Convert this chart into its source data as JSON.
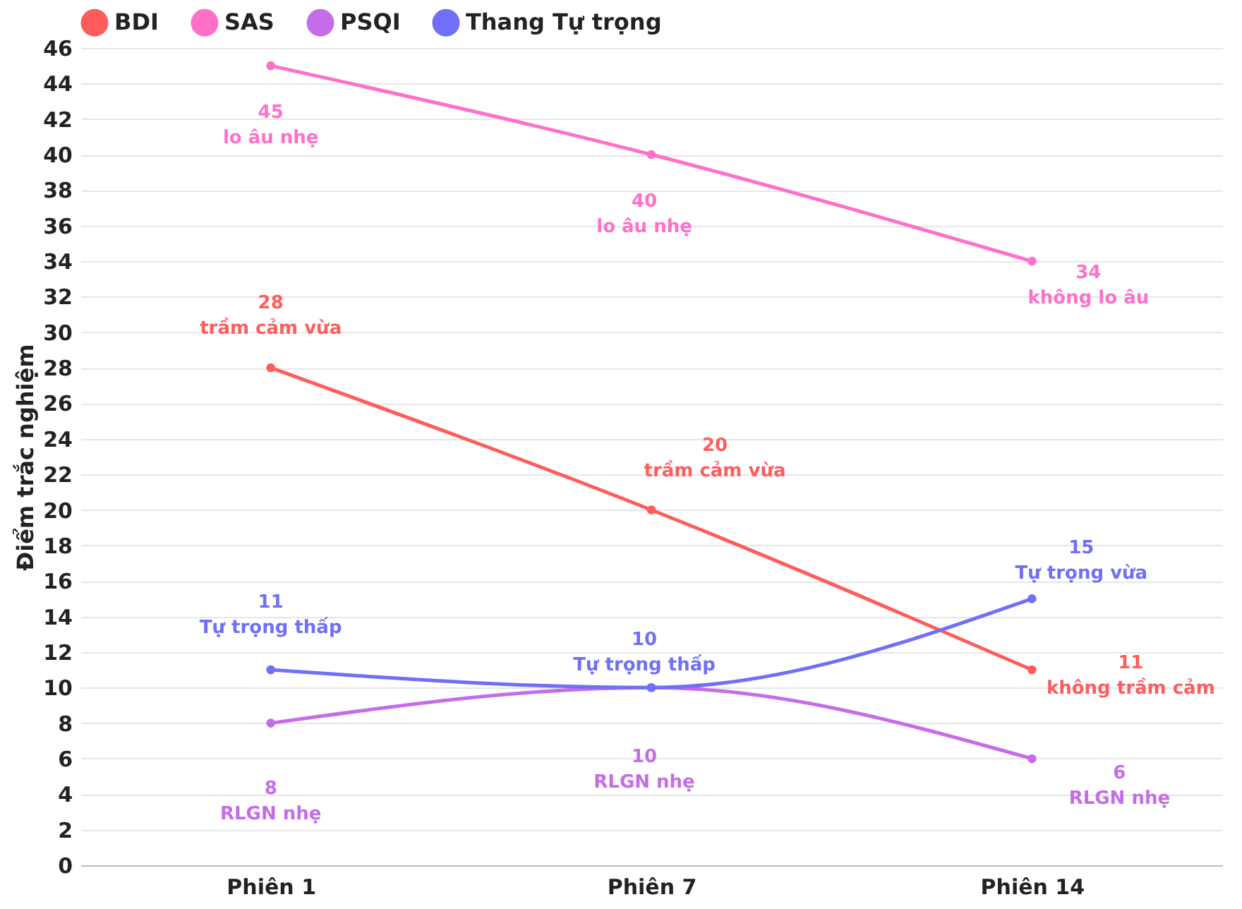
{
  "chart_data": {
    "type": "line",
    "ylabel": "Điểm trắc nghiệm",
    "categories": [
      "Phiên 1",
      "Phiên 7",
      "Phiên 14"
    ],
    "series": [
      {
        "name": "BDI",
        "color": "#ff5c5c",
        "values": [
          28,
          20,
          11
        ],
        "value_labels": [
          "28\ntrầm cảm vừa",
          "20\ntrầm cảm vừa",
          "11\nkhông trầm cảm"
        ]
      },
      {
        "name": "SAS",
        "color": "#ff70c8",
        "values": [
          45,
          40,
          34
        ],
        "value_labels": [
          "45\nlo âu nhẹ",
          "40\nlo âu nhẹ",
          "34\nkhông lo âu"
        ]
      },
      {
        "name": "PSQI",
        "color": "#c56de8",
        "values": [
          8,
          10,
          6
        ],
        "value_labels": [
          "8\nRLGN nhẹ",
          "10\nRLGN nhẹ",
          "6\nRLGN nhẹ"
        ]
      },
      {
        "name": "Thang Tự trọng",
        "color": "#6f6ff7",
        "values": [
          11,
          10,
          15
        ],
        "value_labels": [
          "11\nTự trọng thấp",
          "10\nTự trọng thấp",
          "15\nTự trọng vừa"
        ]
      }
    ],
    "ylim": [
      0,
      46
    ],
    "yticks": [
      0,
      2,
      4,
      6,
      8,
      10,
      12,
      14,
      16,
      18,
      20,
      22,
      24,
      26,
      28,
      30,
      32,
      34,
      36,
      38,
      40,
      42,
      44,
      46
    ],
    "grid": "y",
    "legend": "top",
    "marker": "circle",
    "line_style": "solid"
  }
}
